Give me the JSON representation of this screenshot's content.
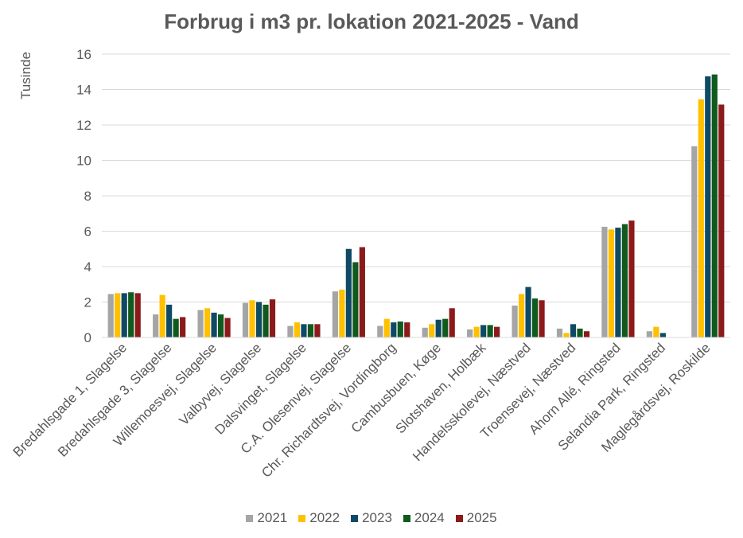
{
  "chart_data": {
    "type": "bar",
    "title": "Forbrug i m3 pr. lokation 2021-2025 - Vand",
    "ylabel": "Tusinde",
    "xlabel": "",
    "ylim": [
      0,
      16
    ],
    "yticks": [
      0,
      2,
      4,
      6,
      8,
      10,
      12,
      14,
      16
    ],
    "grid": true,
    "legend_position": "bottom",
    "categories": [
      "Bredahlsgade 1, Slagelse",
      "Bredahlsgade 3, Slagelse",
      "Willemoesvej, Slagelse",
      "Valbyvej, Slagelse",
      "Dalsvinget, Slagelse",
      "C.A. Olesenvej, Slagelse",
      "Chr. Richardtsvej, Vordingborg",
      "Cambusbuen, Køge",
      "Slotshaven, Holbæk",
      "Handelsskolevej, Næstved",
      "Troensevej, Næstved",
      "Ahorn Allé, Ringsted",
      "Selandia Park, Ringsted",
      "Maglegårdsvej, Roskilde"
    ],
    "series": [
      {
        "name": "2021",
        "color": "#a5a5a5",
        "values": [
          2.45,
          1.3,
          1.55,
          1.95,
          0.65,
          2.6,
          0.65,
          0.55,
          0.45,
          1.8,
          0.5,
          6.25,
          0.35,
          10.8
        ]
      },
      {
        "name": "2022",
        "color": "#ffc000",
        "values": [
          2.5,
          2.4,
          1.65,
          2.1,
          0.85,
          2.7,
          1.05,
          0.75,
          0.6,
          2.45,
          0.25,
          6.1,
          0.6,
          13.45
        ]
      },
      {
        "name": "2023",
        "color": "#0f4a64",
        "values": [
          2.5,
          1.85,
          1.4,
          2.0,
          0.75,
          5.0,
          0.85,
          1.0,
          0.7,
          2.85,
          0.75,
          6.2,
          0.25,
          14.75
        ]
      },
      {
        "name": "2024",
        "color": "#115a1e",
        "values": [
          2.55,
          1.05,
          1.3,
          1.85,
          0.75,
          4.25,
          0.9,
          1.05,
          0.7,
          2.2,
          0.5,
          6.4,
          0.0,
          14.85
        ]
      },
      {
        "name": "2025",
        "color": "#8b1a1a",
        "values": [
          2.5,
          1.15,
          1.1,
          2.15,
          0.75,
          5.1,
          0.85,
          1.65,
          0.6,
          2.1,
          0.35,
          6.6,
          0.0,
          13.15
        ]
      }
    ]
  }
}
